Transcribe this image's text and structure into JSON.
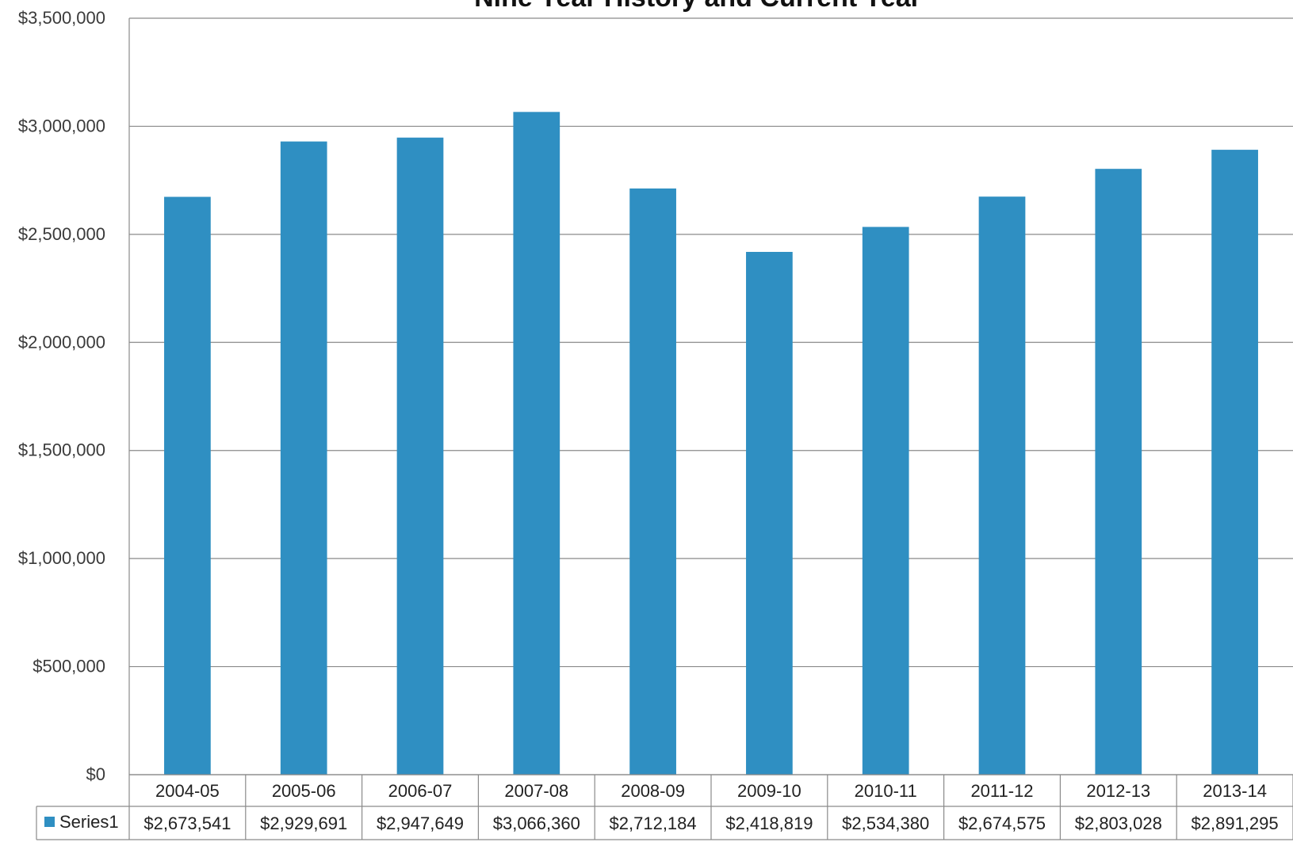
{
  "chart_data": {
    "type": "bar",
    "title": "Nine Year History and Current Year",
    "xlabel": "",
    "ylabel": "",
    "ylim": [
      0,
      3500000
    ],
    "yticks": [
      "$0",
      "$500,000",
      "$1,000,000",
      "$1,500,000",
      "$2,000,000",
      "$2,500,000",
      "$3,000,000",
      "$3,500,000"
    ],
    "ytick_values": [
      0,
      500000,
      1000000,
      1500000,
      2000000,
      2500000,
      3000000,
      3500000
    ],
    "grid": true,
    "legend": "data-table-left",
    "categories": [
      "2004-05",
      "2005-06",
      "2006-07",
      "2007-08",
      "2008-09",
      "2009-10",
      "2010-11",
      "2011-12",
      "2012-13",
      "2013-14"
    ],
    "series": [
      {
        "name": "Series1",
        "color": "#2f8fc2",
        "values": [
          2673541,
          2929691,
          2947649,
          3066360,
          2712184,
          2418819,
          2534380,
          2674575,
          2803028,
          2891295
        ],
        "labels": [
          "$2,673,541",
          "$2,929,691",
          "$2,947,649",
          "$3,066,360",
          "$2,712,184",
          "$2,418,819",
          "$2,534,380",
          "$2,674,575",
          "$2,803,028",
          "$2,891,295"
        ]
      }
    ]
  }
}
